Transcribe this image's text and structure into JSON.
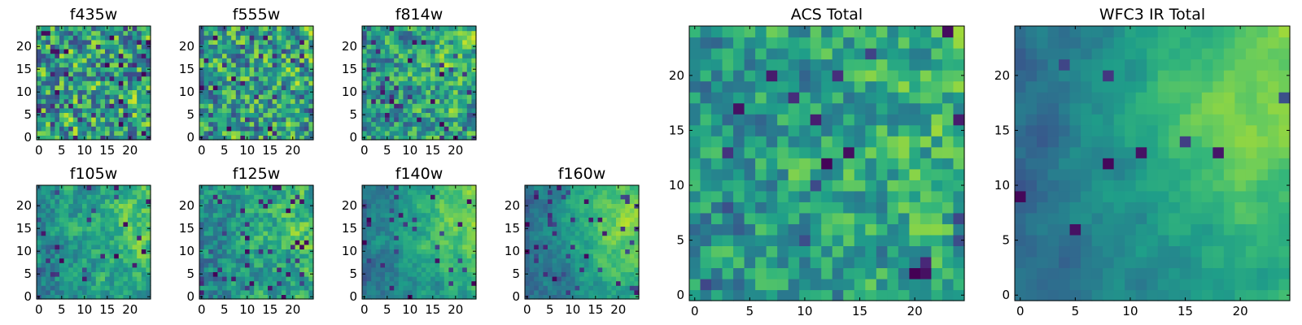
{
  "figure": {
    "colormap": "viridis",
    "grid": false
  },
  "chart_data": [
    {
      "type": "heatmap",
      "name": "f435w",
      "title": "f435w",
      "size": 25,
      "xlim": [
        -0.5,
        24.5
      ],
      "ylim": [
        -0.5,
        24.5
      ],
      "xticks": [
        0,
        5,
        10,
        15,
        20
      ],
      "yticks": [
        0,
        5,
        10,
        15,
        20
      ],
      "seed": 11,
      "gradient": 0.0,
      "noise": 0.75,
      "dark_spots": 0.1
    },
    {
      "type": "heatmap",
      "name": "f555w",
      "title": "f555w",
      "size": 25,
      "xlim": [
        -0.5,
        24.5
      ],
      "ylim": [
        -0.5,
        24.5
      ],
      "xticks": [
        0,
        5,
        10,
        15,
        20
      ],
      "yticks": [
        0,
        5,
        10,
        15,
        20
      ],
      "seed": 23,
      "gradient": 0.05,
      "noise": 0.72,
      "dark_spots": 0.06
    },
    {
      "type": "heatmap",
      "name": "f814w",
      "title": "f814w",
      "size": 25,
      "xlim": [
        -0.5,
        24.5
      ],
      "ylim": [
        -0.5,
        24.5
      ],
      "xticks": [
        0,
        5,
        10,
        15,
        20
      ],
      "yticks": [
        0,
        5,
        10,
        15,
        20
      ],
      "seed": 37,
      "gradient": 0.15,
      "noise": 0.65,
      "dark_spots": 0.06
    },
    {
      "type": "heatmap",
      "name": "f105w",
      "title": "f105w",
      "size": 25,
      "xlim": [
        -0.5,
        24.5
      ],
      "ylim": [
        -0.5,
        24.5
      ],
      "xticks": [
        0,
        5,
        10,
        15,
        20
      ],
      "yticks": [
        0,
        5,
        10,
        15,
        20
      ],
      "seed": 41,
      "gradient": 0.35,
      "noise": 0.45,
      "dark_spots": 0.05
    },
    {
      "type": "heatmap",
      "name": "f125w",
      "title": "f125w",
      "size": 25,
      "xlim": [
        -0.5,
        24.5
      ],
      "ylim": [
        -0.5,
        24.5
      ],
      "xticks": [
        0,
        5,
        10,
        15,
        20
      ],
      "yticks": [
        0,
        5,
        10,
        15,
        20
      ],
      "seed": 53,
      "gradient": 0.3,
      "noise": 0.5,
      "dark_spots": 0.06
    },
    {
      "type": "heatmap",
      "name": "f140w",
      "title": "f140w",
      "size": 25,
      "xlim": [
        -0.5,
        24.5
      ],
      "ylim": [
        -0.5,
        24.5
      ],
      "xticks": [
        0,
        5,
        10,
        15,
        20
      ],
      "yticks": [
        0,
        5,
        10,
        15,
        20
      ],
      "seed": 67,
      "gradient": 0.5,
      "noise": 0.35,
      "dark_spots": 0.04
    },
    {
      "type": "heatmap",
      "name": "f160w",
      "title": "f160w",
      "size": 25,
      "xlim": [
        -0.5,
        24.5
      ],
      "ylim": [
        -0.5,
        24.5
      ],
      "xticks": [
        0,
        5,
        10,
        15,
        20
      ],
      "yticks": [
        0,
        5,
        10,
        15,
        20
      ],
      "seed": 79,
      "gradient": 0.55,
      "noise": 0.35,
      "dark_spots": 0.07
    },
    {
      "type": "heatmap",
      "name": "ACS Total",
      "title": "ACS Total",
      "size": 25,
      "xlim": [
        -0.5,
        24.5
      ],
      "ylim": [
        -0.5,
        24.5
      ],
      "xticks": [
        0,
        5,
        10,
        15,
        20
      ],
      "yticks": [
        0,
        5,
        10,
        15,
        20
      ],
      "seed": 97,
      "gradient": 0.2,
      "noise": 0.55,
      "dark_spots": 0.03
    },
    {
      "type": "heatmap",
      "name": "WFC3 IR Total",
      "title": "WFC3 IR Total",
      "size": 25,
      "xlim": [
        -0.5,
        24.5
      ],
      "ylim": [
        -0.5,
        24.5
      ],
      "xticks": [
        0,
        5,
        10,
        15,
        20
      ],
      "yticks": [
        0,
        5,
        10,
        15,
        20
      ],
      "seed": 113,
      "gradient": 0.6,
      "noise": 0.2,
      "dark_spots": 0.02
    }
  ]
}
